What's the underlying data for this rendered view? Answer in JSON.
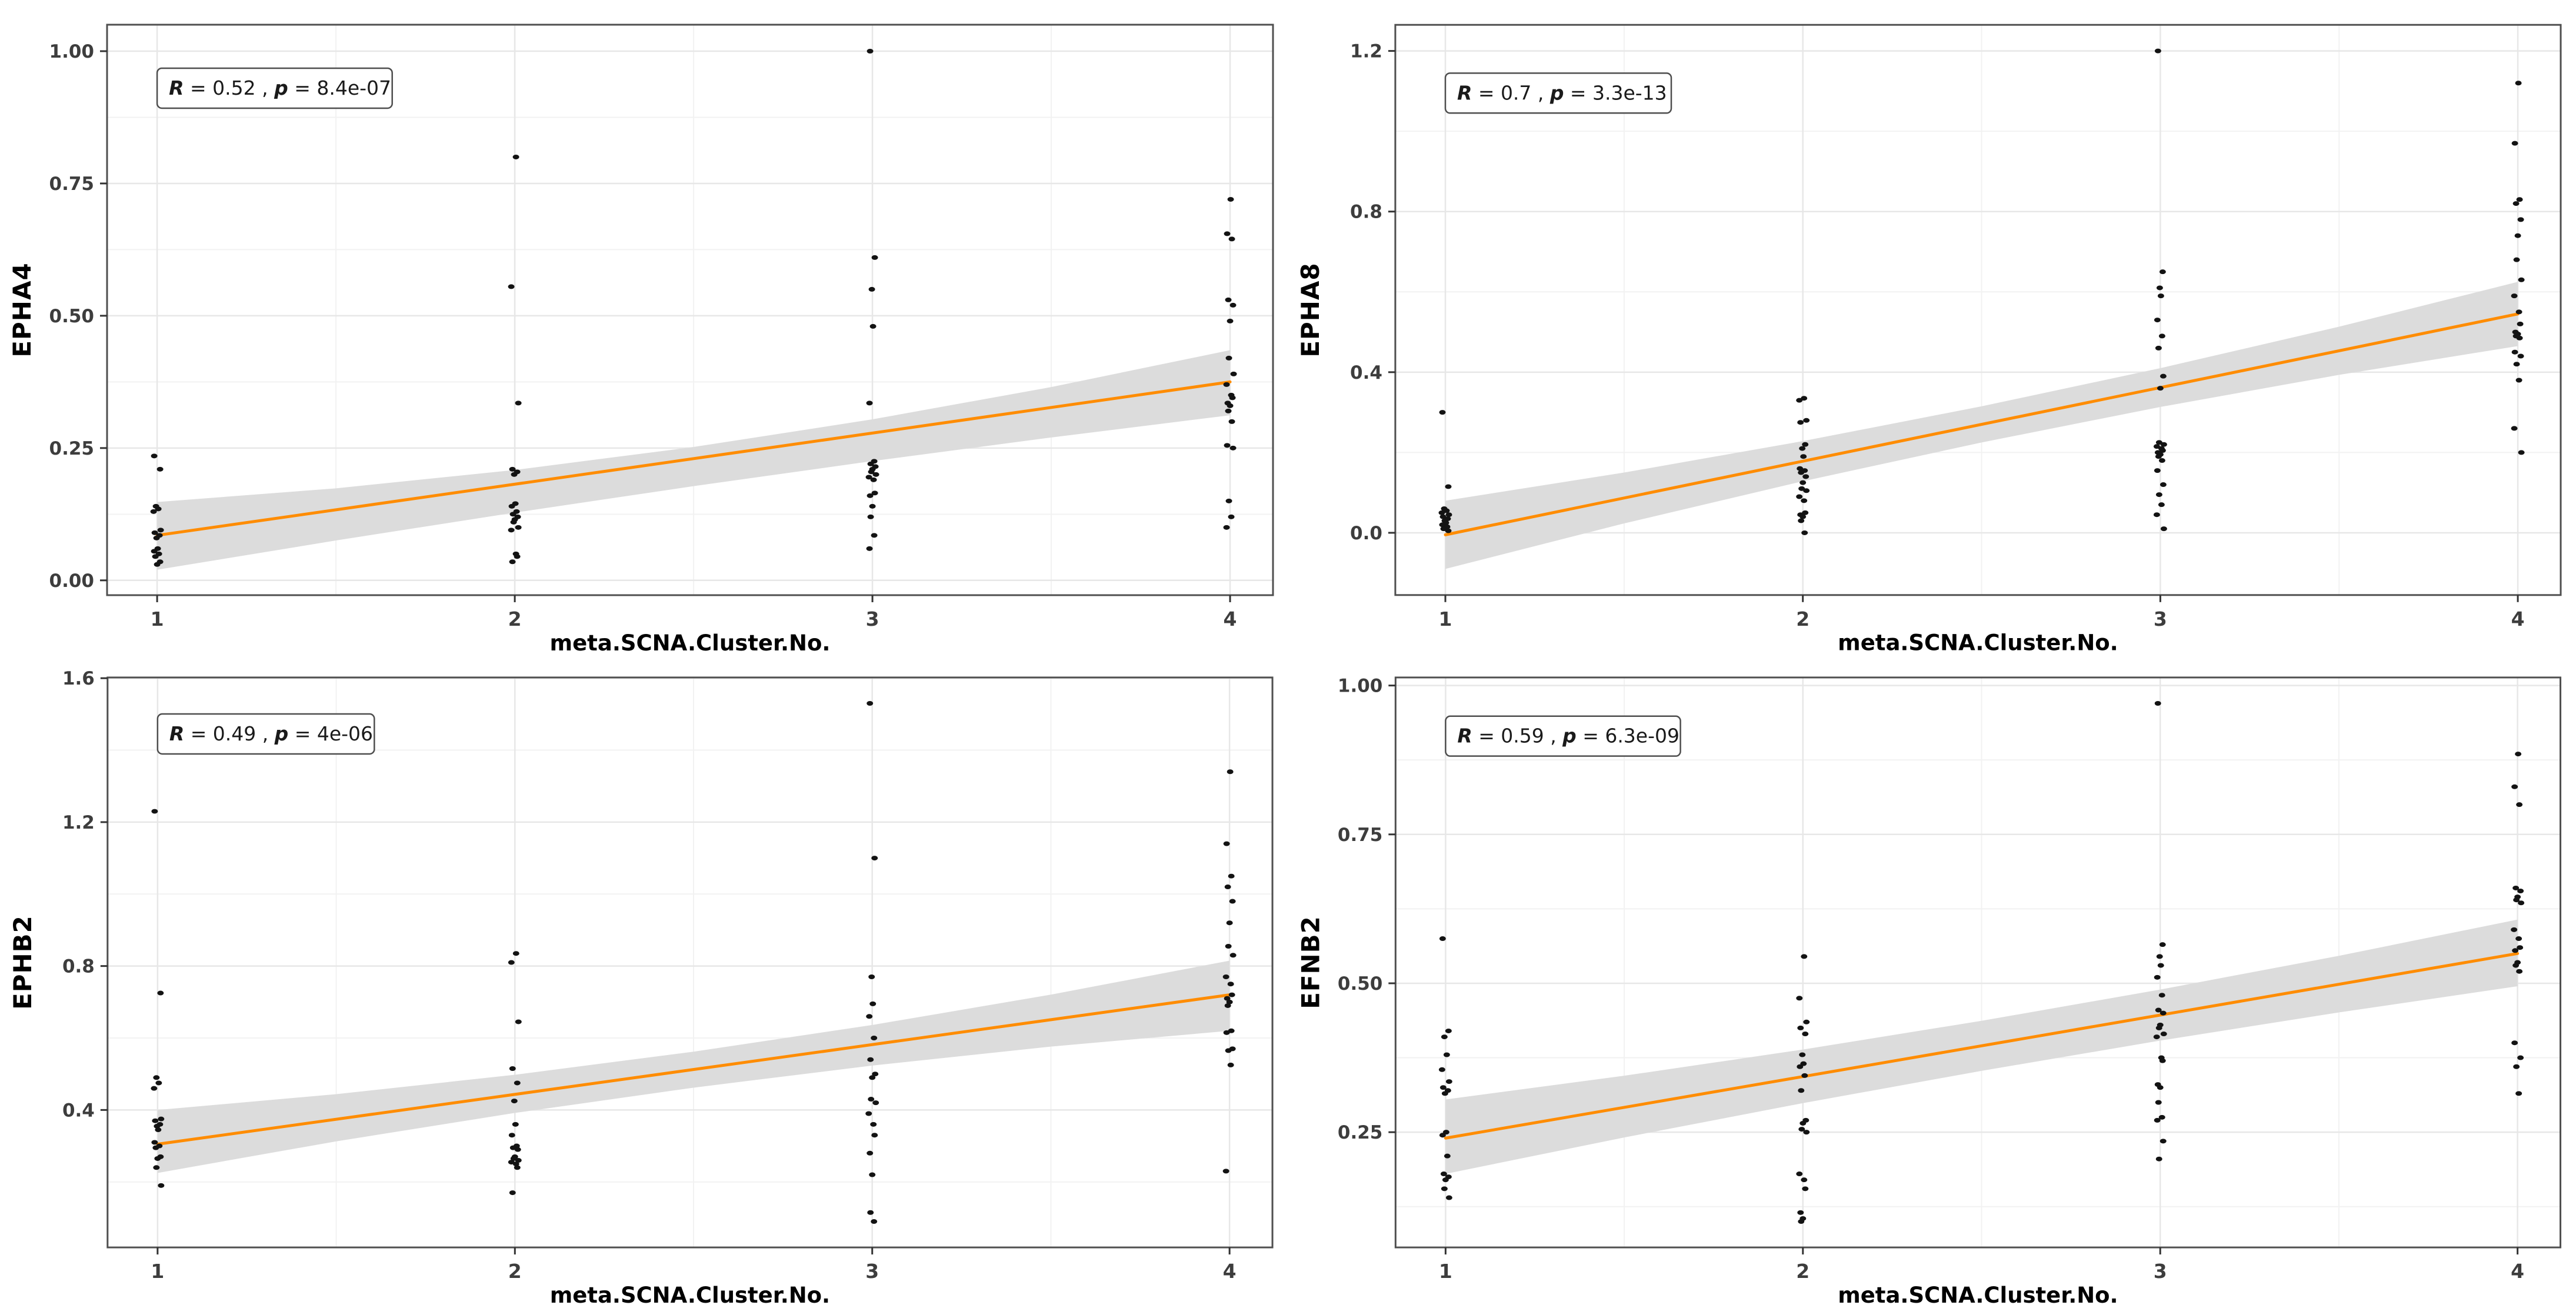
{
  "figure": {
    "background": "#ffffff",
    "line_color": "#ff8c00",
    "band_color": "#dcdcdc",
    "grid_major_color": "#e7e7e7",
    "grid_minor_color": "#f2f2f2",
    "panel_border_color": "#4f4f4f",
    "tick_color": "#333333",
    "tick_label_color": "#3d3d3d",
    "point_color": "#131313",
    "xlabel": "meta.SCNA.Cluster.No."
  },
  "chart_data": [
    {
      "type": "scatter",
      "ylabel": "EPHA4",
      "xlabel": "meta.SCNA.Cluster.No.",
      "legend": "none",
      "grid": true,
      "xlim": [
        0.86,
        4.12
      ],
      "ylim": [
        -0.028,
        1.05
      ],
      "x_ticks": [
        "1",
        "2",
        "3",
        "4"
      ],
      "y_ticks": [
        {
          "v": 0.0,
          "label": "0.00"
        },
        {
          "v": 0.25,
          "label": "0.25"
        },
        {
          "v": 0.5,
          "label": "0.50"
        },
        {
          "v": 0.75,
          "label": "0.75"
        },
        {
          "v": 1.0,
          "label": "1.00"
        }
      ],
      "annotation": {
        "r_label": "R",
        "r_value": "0.52",
        "p_label": "p",
        "p_value": "8.4e-07",
        "text": "R =  0.52 , p =  8.4e-07",
        "anchor_x": 1,
        "anchor_y": 0.93
      },
      "regression": {
        "x": [
          1,
          4
        ],
        "y": [
          0.085,
          0.375
        ]
      },
      "ci": {
        "x": [
          1,
          2.5,
          4
        ],
        "upper": [
          0.148,
          0.252,
          0.435
        ],
        "lower": [
          0.02,
          0.178,
          0.312
        ]
      },
      "points": [
        {
          "x": 1,
          "values": [
            0.235,
            0.21,
            0.14,
            0.135,
            0.13,
            0.095,
            0.09,
            0.085,
            0.08,
            0.06,
            0.055,
            0.05,
            0.045,
            0.035,
            0.03
          ]
        },
        {
          "x": 2,
          "values": [
            0.8,
            0.555,
            0.335,
            0.21,
            0.205,
            0.2,
            0.145,
            0.14,
            0.13,
            0.125,
            0.12,
            0.115,
            0.11,
            0.1,
            0.095,
            0.05,
            0.045,
            0.035
          ]
        },
        {
          "x": 3,
          "values": [
            1.0,
            0.61,
            0.55,
            0.48,
            0.335,
            0.225,
            0.22,
            0.215,
            0.21,
            0.205,
            0.2,
            0.195,
            0.19,
            0.165,
            0.16,
            0.14,
            0.12,
            0.085,
            0.06
          ]
        },
        {
          "x": 4,
          "values": [
            0.72,
            0.655,
            0.645,
            0.53,
            0.52,
            0.49,
            0.42,
            0.39,
            0.37,
            0.35,
            0.345,
            0.335,
            0.33,
            0.32,
            0.3,
            0.255,
            0.25,
            0.15,
            0.12,
            0.1
          ]
        }
      ]
    },
    {
      "type": "scatter",
      "ylabel": "EPHA8",
      "xlabel": "meta.SCNA.Cluster.No.",
      "legend": "none",
      "grid": true,
      "xlim": [
        0.86,
        4.12
      ],
      "ylim": [
        -0.155,
        1.265
      ],
      "x_ticks": [
        "1",
        "2",
        "3",
        "4"
      ],
      "y_ticks": [
        {
          "v": 0.0,
          "label": "0.0"
        },
        {
          "v": 0.4,
          "label": "0.4"
        },
        {
          "v": 0.8,
          "label": "0.8"
        },
        {
          "v": 1.2,
          "label": "1.2"
        }
      ],
      "annotation": {
        "r_label": "R",
        "r_value": "0.7",
        "p_label": "p",
        "p_value": "3.3e-13",
        "text": "R =  0.7 , p =  3.3e-13",
        "anchor_x": 1,
        "anchor_y": 1.095
      },
      "regression": {
        "x": [
          1,
          4
        ],
        "y": [
          -0.005,
          0.545
        ]
      },
      "ci": {
        "x": [
          1,
          2.5,
          4
        ],
        "upper": [
          0.08,
          0.315,
          0.625
        ],
        "lower": [
          -0.09,
          0.225,
          0.465
        ]
      },
      "points": [
        {
          "x": 1,
          "values": [
            0.3,
            0.115,
            0.06,
            0.055,
            0.05,
            0.045,
            0.04,
            0.035,
            0.03,
            0.025,
            0.02,
            0.015,
            0.01,
            0.005
          ]
        },
        {
          "x": 2,
          "values": [
            0.335,
            0.33,
            0.28,
            0.275,
            0.22,
            0.21,
            0.19,
            0.16,
            0.155,
            0.15,
            0.14,
            0.125,
            0.11,
            0.105,
            0.09,
            0.08,
            0.05,
            0.045,
            0.04,
            0.03,
            0.0
          ]
        },
        {
          "x": 3,
          "values": [
            1.2,
            0.65,
            0.61,
            0.59,
            0.53,
            0.49,
            0.46,
            0.39,
            0.36,
            0.225,
            0.22,
            0.215,
            0.21,
            0.205,
            0.2,
            0.195,
            0.19,
            0.18,
            0.155,
            0.12,
            0.095,
            0.07,
            0.045,
            0.01
          ]
        },
        {
          "x": 4,
          "values": [
            1.12,
            0.97,
            0.83,
            0.82,
            0.78,
            0.74,
            0.68,
            0.63,
            0.59,
            0.55,
            0.52,
            0.5,
            0.495,
            0.49,
            0.485,
            0.45,
            0.44,
            0.42,
            0.38,
            0.26,
            0.2
          ]
        }
      ]
    },
    {
      "type": "scatter",
      "ylabel": "EPHB2",
      "xlabel": "meta.SCNA.Cluster.No.",
      "legend": "none",
      "grid": true,
      "xlim": [
        0.86,
        4.12
      ],
      "ylim": [
        0.018,
        1.602
      ],
      "x_ticks": [
        "1",
        "2",
        "3",
        "4"
      ],
      "y_ticks": [
        {
          "v": 0.4,
          "label": "0.4"
        },
        {
          "v": 0.8,
          "label": "0.8"
        },
        {
          "v": 1.2,
          "label": "1.2"
        },
        {
          "v": 1.6,
          "label": "1.6"
        }
      ],
      "annotation": {
        "r_label": "R",
        "r_value": "0.49",
        "p_label": "p",
        "p_value": "4e-06",
        "text": "R =  0.49 , p =  4e-06",
        "anchor_x": 1,
        "anchor_y": 1.445
      },
      "regression": {
        "x": [
          1,
          4
        ],
        "y": [
          0.305,
          0.72
        ]
      },
      "ci": {
        "x": [
          1,
          2.5,
          4
        ],
        "upper": [
          0.4,
          0.562,
          0.815
        ],
        "lower": [
          0.225,
          0.462,
          0.62
        ]
      },
      "points": [
        {
          "x": 1,
          "values": [
            1.23,
            0.725,
            0.49,
            0.475,
            0.46,
            0.375,
            0.37,
            0.36,
            0.355,
            0.345,
            0.31,
            0.3,
            0.295,
            0.27,
            0.265,
            0.24,
            0.19
          ]
        },
        {
          "x": 2,
          "values": [
            0.835,
            0.81,
            0.645,
            0.515,
            0.475,
            0.425,
            0.36,
            0.33,
            0.3,
            0.295,
            0.29,
            0.27,
            0.265,
            0.26,
            0.255,
            0.25,
            0.24,
            0.17
          ]
        },
        {
          "x": 3,
          "values": [
            1.53,
            1.1,
            0.77,
            0.695,
            0.66,
            0.6,
            0.54,
            0.5,
            0.49,
            0.43,
            0.42,
            0.39,
            0.36,
            0.33,
            0.28,
            0.22,
            0.115,
            0.09
          ]
        },
        {
          "x": 4,
          "values": [
            1.34,
            1.14,
            1.05,
            1.02,
            0.98,
            0.92,
            0.855,
            0.83,
            0.77,
            0.75,
            0.72,
            0.71,
            0.7,
            0.69,
            0.62,
            0.615,
            0.57,
            0.565,
            0.525,
            0.23
          ]
        }
      ]
    },
    {
      "type": "scatter",
      "ylabel": "EFNB2",
      "xlabel": "meta.SCNA.Cluster.No.",
      "legend": "none",
      "grid": true,
      "xlim": [
        0.86,
        4.12
      ],
      "ylim": [
        0.0565,
        1.0135
      ],
      "x_ticks": [
        "1",
        "2",
        "3",
        "4"
      ],
      "y_ticks": [
        {
          "v": 0.25,
          "label": "0.25"
        },
        {
          "v": 0.5,
          "label": "0.50"
        },
        {
          "v": 0.75,
          "label": "0.75"
        },
        {
          "v": 1.0,
          "label": "1.00"
        }
      ],
      "annotation": {
        "r_label": "R",
        "r_value": "0.59",
        "p_label": "p",
        "p_value": "6.3e-09",
        "text": "R =  0.59 , p =  6.3e-09",
        "anchor_x": 1,
        "anchor_y": 0.915
      },
      "regression": {
        "x": [
          1,
          4
        ],
        "y": [
          0.24,
          0.55
        ]
      },
      "ci": {
        "x": [
          1,
          2.5,
          4
        ],
        "upper": [
          0.305,
          0.437,
          0.607
        ],
        "lower": [
          0.18,
          0.353,
          0.495
        ]
      },
      "points": [
        {
          "x": 1,
          "values": [
            0.575,
            0.42,
            0.41,
            0.38,
            0.355,
            0.335,
            0.325,
            0.32,
            0.315,
            0.25,
            0.245,
            0.21,
            0.18,
            0.175,
            0.17,
            0.155,
            0.14
          ]
        },
        {
          "x": 2,
          "values": [
            0.545,
            0.475,
            0.435,
            0.425,
            0.415,
            0.38,
            0.365,
            0.36,
            0.345,
            0.32,
            0.27,
            0.265,
            0.255,
            0.25,
            0.18,
            0.17,
            0.155,
            0.115,
            0.105,
            0.1
          ]
        },
        {
          "x": 3,
          "values": [
            0.97,
            0.565,
            0.545,
            0.53,
            0.51,
            0.48,
            0.455,
            0.45,
            0.43,
            0.425,
            0.415,
            0.41,
            0.375,
            0.37,
            0.33,
            0.325,
            0.3,
            0.275,
            0.27,
            0.235,
            0.205
          ]
        },
        {
          "x": 4,
          "values": [
            0.885,
            0.83,
            0.8,
            0.66,
            0.655,
            0.645,
            0.64,
            0.635,
            0.59,
            0.575,
            0.56,
            0.555,
            0.535,
            0.53,
            0.52,
            0.4,
            0.375,
            0.36,
            0.315
          ]
        }
      ]
    }
  ]
}
